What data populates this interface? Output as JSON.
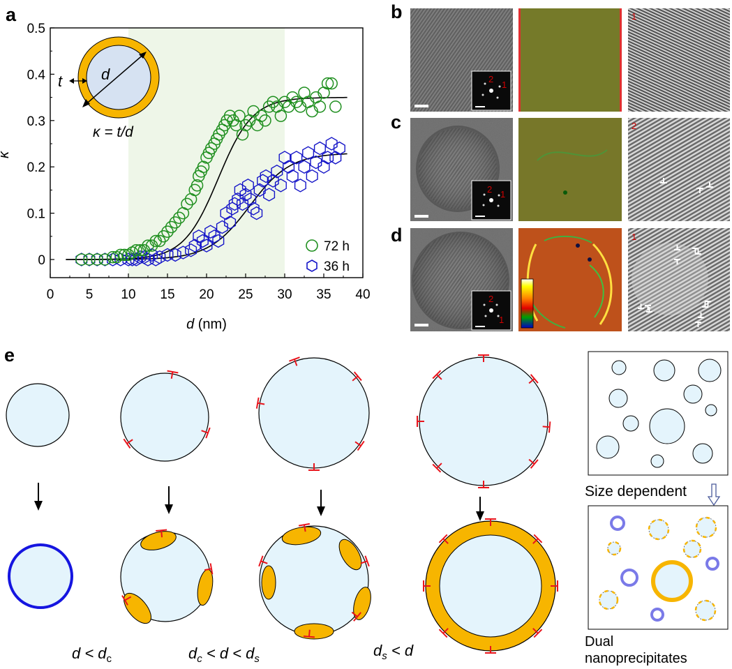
{
  "panel_labels": {
    "a": "a",
    "b": "b",
    "c": "c",
    "d": "d",
    "e": "e"
  },
  "chart_data": {
    "type": "scatter",
    "title": "",
    "xlabel": "d (nm)",
    "ylabel": "κ",
    "xlim": [
      0,
      40
    ],
    "ylim": [
      0,
      0.5
    ],
    "xticks": [
      "0",
      "5",
      "10",
      "15",
      "20",
      "25",
      "30",
      "35",
      "40"
    ],
    "yticks": [
      "0",
      "0.1",
      "0.2",
      "0.3",
      "0.4",
      "0.5"
    ],
    "shaded_region": [
      10,
      30
    ],
    "legend_position": "bottom-right",
    "legend_labels": [
      "72 h",
      "36 h"
    ],
    "series": [
      {
        "name": "72 h",
        "marker": "circle",
        "color": "#1f8f1f",
        "x": [
          4,
          5,
          6,
          7,
          8,
          8.5,
          9,
          9.5,
          10,
          10.5,
          11,
          11.5,
          12,
          12.5,
          13,
          13.5,
          14,
          14.5,
          15,
          15.5,
          16,
          16.5,
          17,
          17.5,
          18,
          18.5,
          18.8,
          19,
          19.3,
          19.6,
          20,
          20.3,
          20.6,
          21,
          21.3,
          21.6,
          22,
          22.3,
          22.6,
          23,
          23.4,
          23.8,
          24.2,
          24.6,
          25,
          25.5,
          26,
          26.5,
          27,
          27.5,
          28,
          28.5,
          29,
          29.5,
          30,
          30.5,
          31,
          31.5,
          32,
          32.5,
          33,
          33.5,
          34,
          34.5,
          35,
          35.5,
          36,
          36.5
        ],
        "y": [
          0,
          0,
          0,
          0,
          0.005,
          0.005,
          0.01,
          0.01,
          0.01,
          0.015,
          0.02,
          0.02,
          0.02,
          0.03,
          0.03,
          0.04,
          0.04,
          0.05,
          0.06,
          0.07,
          0.08,
          0.09,
          0.1,
          0.12,
          0.13,
          0.15,
          0.16,
          0.18,
          0.19,
          0.2,
          0.22,
          0.23,
          0.24,
          0.25,
          0.26,
          0.27,
          0.28,
          0.29,
          0.3,
          0.31,
          0.3,
          0.29,
          0.31,
          0.27,
          0.29,
          0.3,
          0.32,
          0.29,
          0.31,
          0.3,
          0.33,
          0.34,
          0.33,
          0.31,
          0.34,
          0.33,
          0.35,
          0.34,
          0.33,
          0.36,
          0.34,
          0.32,
          0.35,
          0.33,
          0.36,
          0.38,
          0.38,
          0.33
        ]
      },
      {
        "name": "36 h",
        "marker": "hexagon",
        "color": "#1515c8",
        "x": [
          4,
          5,
          6,
          7,
          8,
          9,
          10,
          10.5,
          11,
          11.5,
          12,
          12.5,
          13,
          13.5,
          14,
          15,
          16,
          17,
          18,
          18.5,
          19,
          19.5,
          20,
          20.5,
          21,
          21.5,
          22,
          22.5,
          23,
          23.3,
          23.6,
          24,
          24.3,
          24.6,
          25,
          25.3,
          25.6,
          26,
          26.4,
          26.8,
          27.2,
          27.6,
          28,
          28.5,
          29,
          29.5,
          30,
          30.5,
          31,
          31.5,
          32,
          32.5,
          33,
          33.5,
          34,
          34.5,
          35,
          35.5,
          36,
          36.5,
          37
        ],
        "y": [
          0,
          0,
          0,
          0,
          0,
          0,
          0,
          0,
          0,
          0.005,
          0.005,
          0,
          0.01,
          0,
          0.005,
          0.01,
          0.01,
          0.015,
          0.02,
          0.03,
          0.05,
          0.04,
          0.03,
          0.06,
          0.05,
          0.04,
          0.07,
          0.1,
          0.08,
          0.11,
          0.12,
          0.13,
          0.15,
          0.12,
          0.14,
          0.16,
          0.13,
          0.11,
          0.1,
          0.15,
          0.17,
          0.18,
          0.14,
          0.17,
          0.19,
          0.16,
          0.22,
          0.2,
          0.18,
          0.22,
          0.16,
          0.2,
          0.23,
          0.18,
          0.21,
          0.24,
          0.2,
          0.22,
          0.25,
          0.22,
          0.24
        ]
      }
    ],
    "fits": [
      {
        "for": "72 h",
        "plateau": 0.35,
        "midpoint": 21.5,
        "width": 2.2,
        "x_range": [
          2,
          38
        ]
      },
      {
        "for": "36 h",
        "plateau": 0.23,
        "midpoint": 25.5,
        "width": 2.6,
        "x_range": [
          2,
          38
        ]
      }
    ]
  },
  "inset_a": {
    "d": "d",
    "t": "t",
    "formula": "κ = t/d"
  },
  "micrographs": {
    "b_left_labels": [
      "2",
      "1"
    ],
    "b_right_label": "1",
    "c_left_labels": [
      "2",
      "1"
    ],
    "c_right_label": "2",
    "d_left_labels": [
      "2",
      "1"
    ],
    "d_right_label": "1"
  },
  "panel_e": {
    "col1_label": "d < d",
    "col1_sub": "c",
    "col2_label_pre": "d",
    "col2_label_sub1": "c",
    "col2_label_mid": " < d < d",
    "col2_label_sub2": "s",
    "col3_label_pre": "d",
    "col3_label_sub": "s",
    "col3_label_post": " < d",
    "size_dependent": "Size dependent",
    "dual_line1": "Dual",
    "dual_line2": "nanoprecipitates"
  },
  "colors": {
    "shell": "#f7b500",
    "core": "#e4f4fc",
    "inset_core": "#d6e2f2",
    "shade": "#eef6e8",
    "dislocation": "#e8141c",
    "ring_blue": "#1515e0",
    "ring_violet": "#7a7ae8"
  }
}
